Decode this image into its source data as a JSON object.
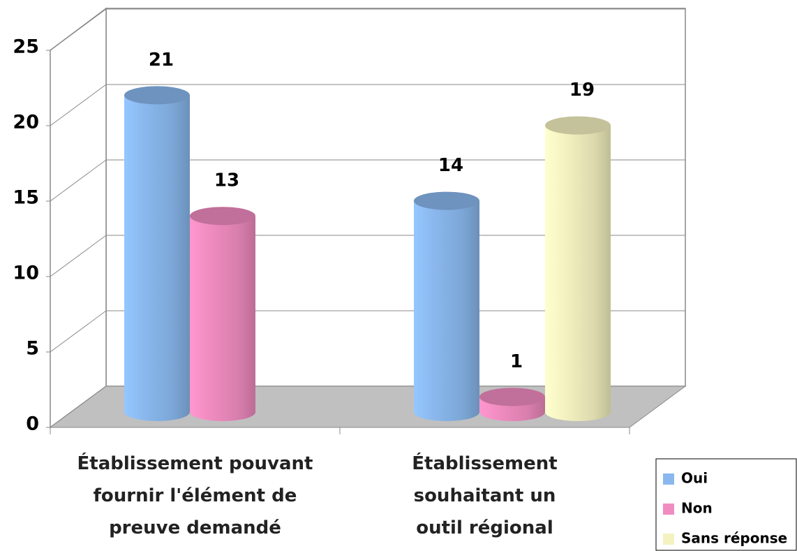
{
  "chart_data": {
    "type": "bar3d-cylinder",
    "categories": [
      "Établissement pouvant fournir l'élément de preuve demandé",
      "Établissement souhaitant un outil régional"
    ],
    "series": [
      {
        "name": "Oui",
        "color": "#8ab8ee",
        "values": [
          21,
          14
        ]
      },
      {
        "name": "Non",
        "color": "#f08cc0",
        "values": [
          13,
          1
        ]
      },
      {
        "name": "Sans réponse",
        "color": "#f4f2c0",
        "values": [
          null,
          19
        ]
      }
    ],
    "ylim": [
      0,
      25
    ],
    "yticks": [
      0,
      5,
      10,
      15,
      20,
      25
    ],
    "grid": true,
    "legend": "bottom-right"
  }
}
